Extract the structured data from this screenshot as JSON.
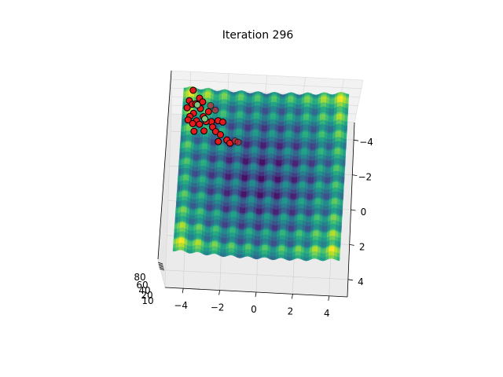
{
  "chart_data": {
    "type": "surface3d",
    "title": "Iteration 296",
    "x_ticks": [
      "−4",
      "−2",
      "0",
      "2",
      "4"
    ],
    "y_ticks": [
      "−4",
      "−2",
      "0",
      "2",
      "4"
    ],
    "z_ticks": [
      "10",
      "20",
      "40",
      "60",
      "80"
    ],
    "xlim": [
      -5,
      5
    ],
    "ylim": [
      -5,
      5
    ],
    "colormap": "viridis",
    "grid": true,
    "particles_color": "#e41a1c",
    "best_color": "#7fc97f",
    "particles": [
      {
        "x": -4.6,
        "y": -3.9
      },
      {
        "x": -4.4,
        "y": -3.6
      },
      {
        "x": -4.2,
        "y": -3.8
      },
      {
        "x": -4.7,
        "y": -3.4
      },
      {
        "x": -4.3,
        "y": -3.2
      },
      {
        "x": -3.9,
        "y": -3.5
      },
      {
        "x": -4.5,
        "y": -3.0
      },
      {
        "x": -4.1,
        "y": -2.9
      },
      {
        "x": -3.7,
        "y": -3.1
      },
      {
        "x": -3.4,
        "y": -3.3
      },
      {
        "x": -3.2,
        "y": -2.9
      },
      {
        "x": -4.6,
        "y": -2.7
      },
      {
        "x": -4.3,
        "y": -2.5
      },
      {
        "x": -3.9,
        "y": -2.6
      },
      {
        "x": -3.5,
        "y": -2.7
      },
      {
        "x": -3.1,
        "y": -2.5
      },
      {
        "x": -2.8,
        "y": -3.0
      },
      {
        "x": -2.5,
        "y": -2.8
      },
      {
        "x": -4.0,
        "y": -4.2
      },
      {
        "x": -4.4,
        "y": -4.4
      },
      {
        "x": -3.8,
        "y": -4.0
      },
      {
        "x": -2.9,
        "y": -2.3
      },
      {
        "x": -2.6,
        "y": -2.1
      },
      {
        "x": -4.2,
        "y": -2.2
      },
      {
        "x": -3.6,
        "y": -2.2
      },
      {
        "x": -2.2,
        "y": -1.9
      },
      {
        "x": -2.0,
        "y": -1.7
      },
      {
        "x": -2.7,
        "y": -1.6
      },
      {
        "x": -1.7,
        "y": -1.8
      },
      {
        "x": -1.5,
        "y": -1.6
      },
      {
        "x": -3.3,
        "y": -3.7
      },
      {
        "x": -3.0,
        "y": -3.5
      }
    ],
    "best": [
      {
        "x": -4.1,
        "y": -3.7
      },
      {
        "x": -3.6,
        "y": -2.9
      }
    ]
  }
}
